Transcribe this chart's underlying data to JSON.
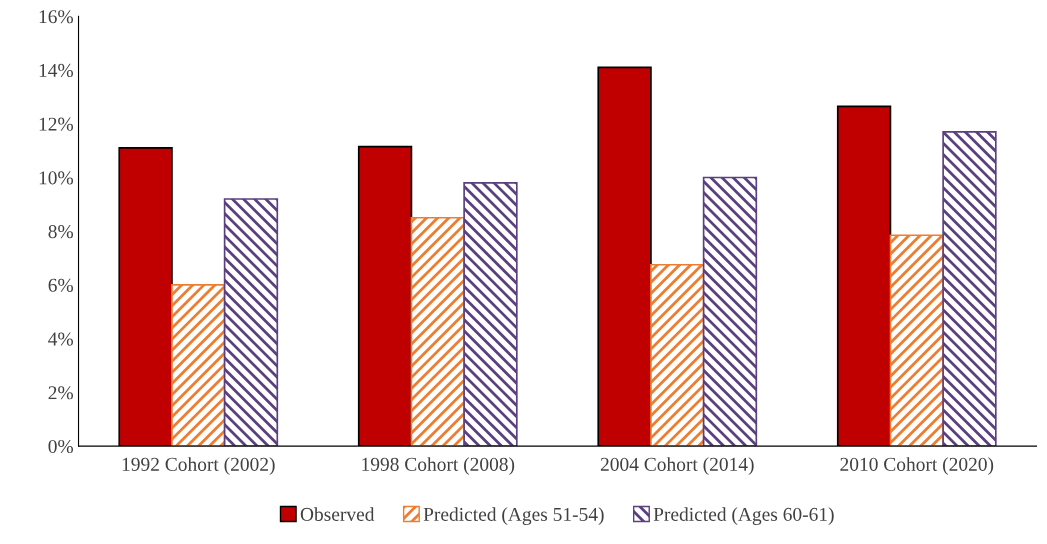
{
  "chart_data": {
    "type": "bar",
    "categories": [
      "1992 Cohort (2002)",
      "1998 Cohort (2008)",
      "2004 Cohort (2014)",
      "2010 Cohort (2020)"
    ],
    "series": [
      {
        "name": "Observed",
        "color": "#c00000",
        "values": [
          11.1,
          11.15,
          14.1,
          12.65
        ]
      },
      {
        "name": "Predicted (Ages 51-54)",
        "color": "#ed7d31",
        "values": [
          6.0,
          8.5,
          6.75,
          7.85
        ]
      },
      {
        "name": "Predicted (Ages 60-61)",
        "color": "#5b4080",
        "values": [
          9.2,
          9.8,
          10.0,
          11.7
        ]
      }
    ],
    "ylim": [
      0,
      16
    ],
    "yticks": [
      {
        "value": 0,
        "label": "0%"
      },
      {
        "value": 2,
        "label": "2%"
      },
      {
        "value": 4,
        "label": "4%"
      },
      {
        "value": 6,
        "label": "6%"
      },
      {
        "value": 8,
        "label": "8%"
      },
      {
        "value": 10,
        "label": "10%"
      },
      {
        "value": 12,
        "label": "12%"
      },
      {
        "value": 14,
        "label": "14%"
      },
      {
        "value": 16,
        "label": "16%"
      }
    ],
    "grid": false,
    "legend": "bottom"
  }
}
